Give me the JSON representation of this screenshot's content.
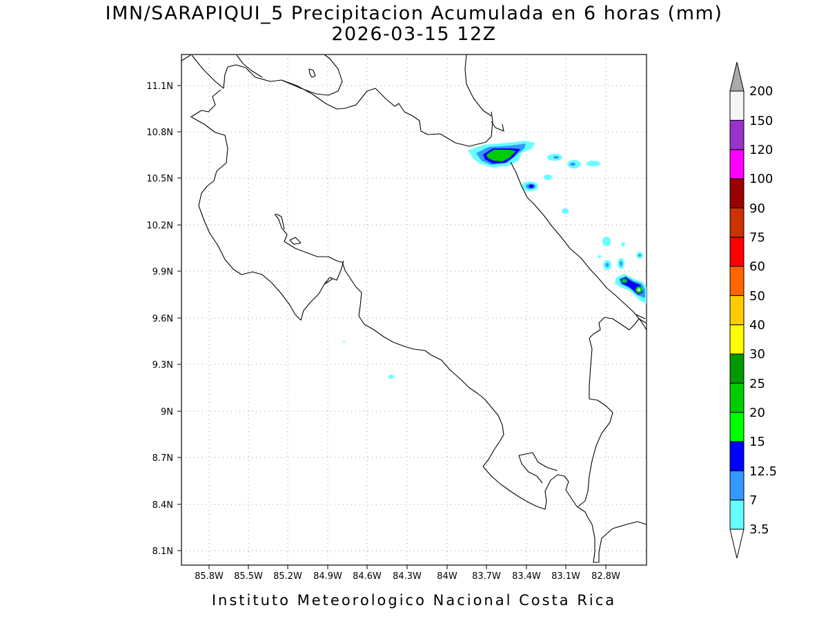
{
  "header": {
    "title_line1": "IMN/SARAPIQUI_5 Precipitacion Acumulada en 6 horas (mm)",
    "title_line2": "2026-03-15 12Z"
  },
  "footer": {
    "text": "Instituto Meteorologico Nacional Costa Rica"
  },
  "axes": {
    "x_ticks": [
      "85.8W",
      "85.5W",
      "85.2W",
      "84.9W",
      "84.6W",
      "84.3W",
      "84W",
      "83.7W",
      "83.4W",
      "83.1W",
      "82.8W"
    ],
    "y_ticks": [
      "11.1N",
      "10.8N",
      "10.5N",
      "10.2N",
      "9.9N",
      "9.6N",
      "9.3N",
      "9N",
      "8.7N",
      "8.4N",
      "8.1N"
    ]
  },
  "colorbar": {
    "labels": [
      "3.5",
      "7",
      "12.5",
      "15",
      "20",
      "25",
      "30",
      "40",
      "50",
      "60",
      "75",
      "90",
      "100",
      "120",
      "150",
      "200"
    ],
    "colors": [
      "#66ffff",
      "#3399ff",
      "#0000ff",
      "#00ff00",
      "#00cc00",
      "#009900",
      "#ffff00",
      "#ffcc00",
      "#ff6600",
      "#ff0000",
      "#cc3300",
      "#990000",
      "#ff00ff",
      "#9933cc",
      "#f5f5f5"
    ],
    "top_arrow_color": "#aaaaaa",
    "bottom_arrow_color": "#ffffff"
  },
  "colors": {
    "coast": "#000000",
    "grid": "#999999"
  }
}
